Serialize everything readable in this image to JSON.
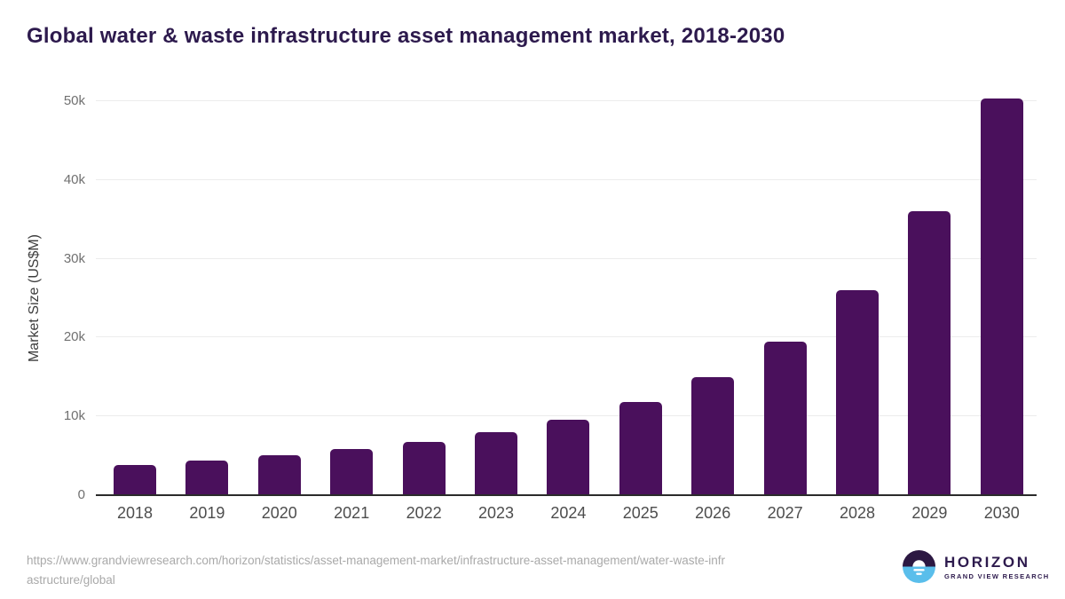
{
  "chart_data": {
    "type": "bar",
    "title": "Global water & waste infrastructure asset management market, 2018-2030",
    "xlabel": "",
    "ylabel": "Market Size (US$M)",
    "categories": [
      "2018",
      "2019",
      "2020",
      "2021",
      "2022",
      "2023",
      "2024",
      "2025",
      "2026",
      "2027",
      "2028",
      "2029",
      "2030"
    ],
    "values": [
      3800,
      4400,
      5100,
      5900,
      6800,
      8000,
      9600,
      11800,
      15000,
      19500,
      26000,
      36000,
      50300
    ],
    "ylim": [
      0,
      52000
    ],
    "yticks": [
      {
        "value": 0,
        "label": "0"
      },
      {
        "value": 10000,
        "label": "10k"
      },
      {
        "value": 20000,
        "label": "20k"
      },
      {
        "value": 30000,
        "label": "30k"
      },
      {
        "value": 40000,
        "label": "40k"
      },
      {
        "value": 50000,
        "label": "50k"
      }
    ],
    "grid": "horizontal",
    "legend": "none",
    "bar_color": "#4a105c"
  },
  "colors": {
    "title_text": "#2d1a4d",
    "bar": "#4a105c",
    "gridline": "#ececec",
    "axis_line": "#2b2b2b",
    "y_tick_text": "#707070",
    "x_tick_text": "#4d4d4d",
    "source_text": "#a9a9a9",
    "logo_purple": "#2c1842",
    "logo_blue": "#5abeeb"
  },
  "source": {
    "lines": [
      "https://www.grandviewresearch.com/horizon/statistics/asset-management-market/infrastructure-asset-management/water-waste-infr",
      "astructure/global"
    ]
  },
  "logo": {
    "title": "HORIZON",
    "subtitle": "GRAND VIEW RESEARCH",
    "icon": "horizon-sunrise-icon"
  }
}
